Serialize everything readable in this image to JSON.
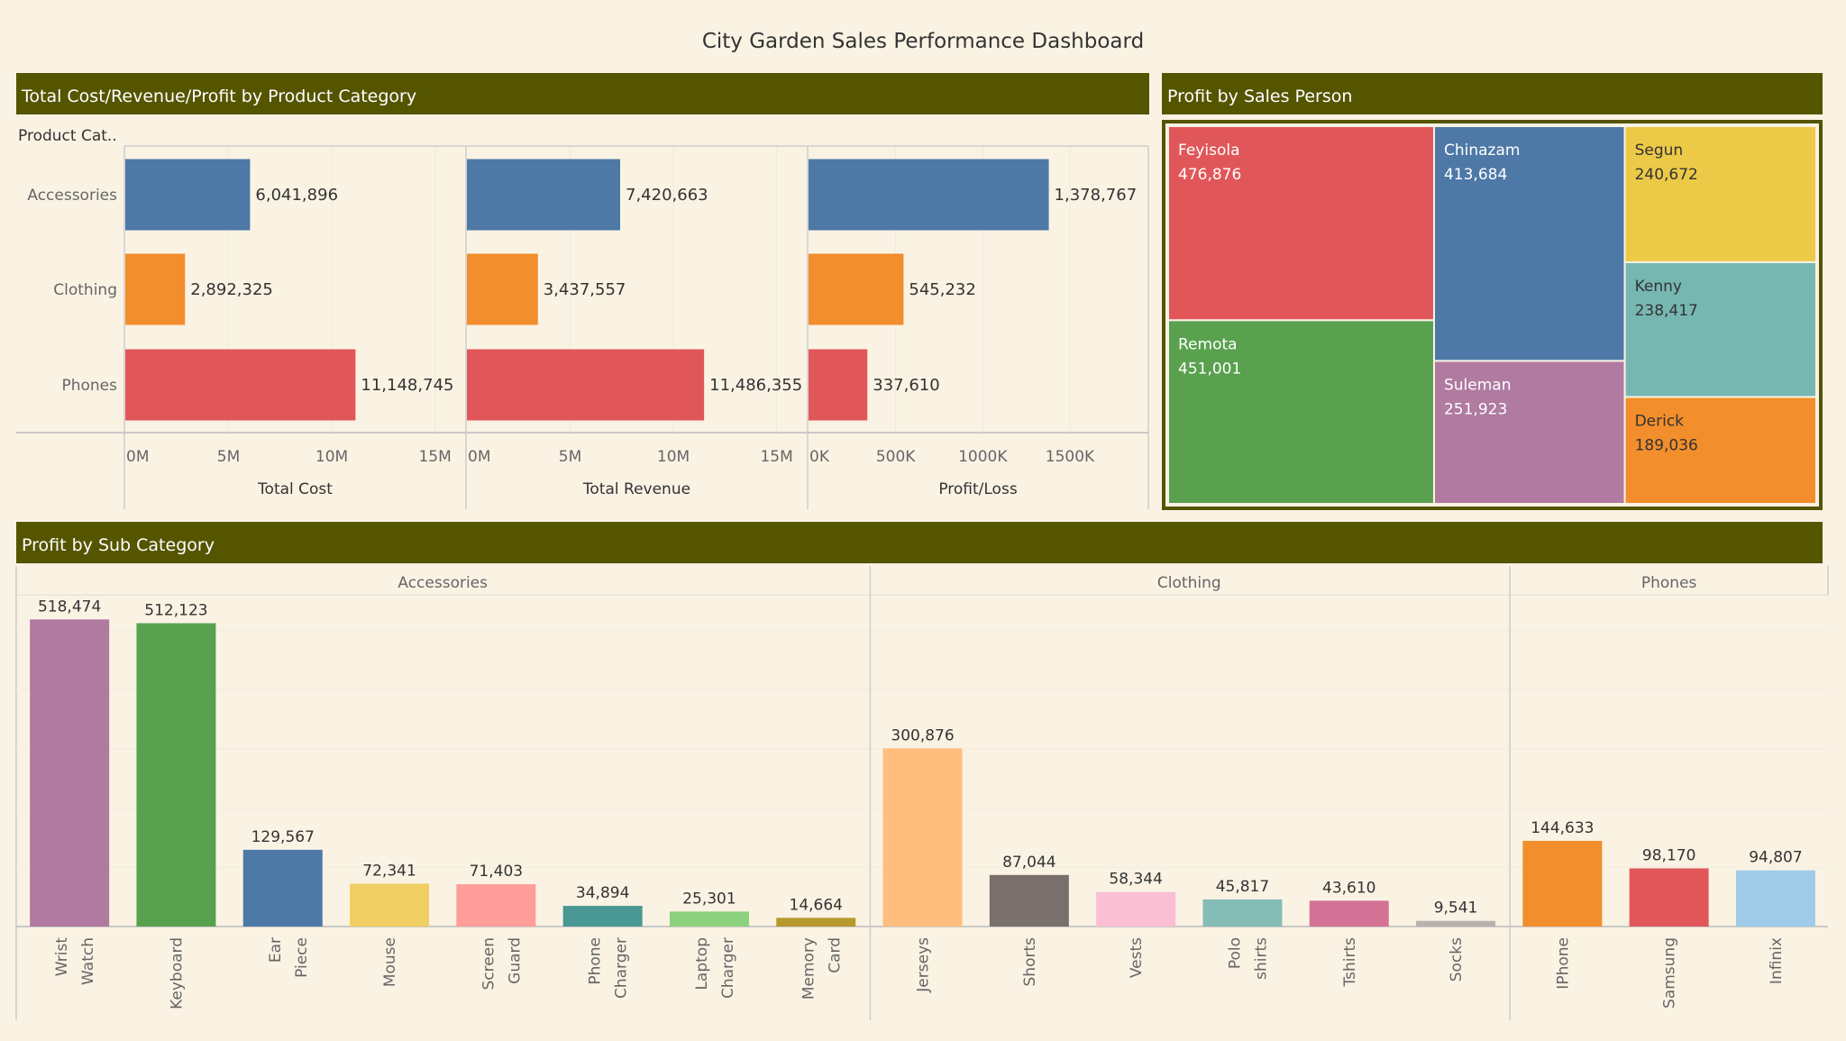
{
  "dashboard": {
    "title": "City Garden Sales Performance Dashboard",
    "colors": {
      "background": "#faf3e4",
      "header": "#555500",
      "header_text": "#ffffff",
      "Accessories": "#4e79a7",
      "Clothing": "#f28e2b",
      "Phones": "#e15759"
    }
  },
  "panels": {
    "category_panel_title": "Total Cost/Revenue/Profit by Product Category",
    "salesperson_panel_title": "Profit by Sales Person",
    "subcategory_panel_title": "Profit by Sub Category",
    "row_header": "Product Cat.."
  },
  "chart_data": [
    {
      "id": "category",
      "type": "bar",
      "orientation": "horizontal",
      "categories": [
        "Accessories",
        "Clothing",
        "Phones"
      ],
      "series": [
        {
          "name": "Total Cost",
          "values": [
            6041896,
            2892325,
            11148745
          ],
          "labels": [
            "6,041,896",
            "2,892,325",
            "11,148,745"
          ],
          "xlim": [
            0,
            16500000
          ],
          "ticks": [
            0,
            5000000,
            10000000,
            15000000
          ],
          "tick_labels": [
            "0M",
            "5M",
            "10M",
            "15M"
          ]
        },
        {
          "name": "Total Revenue",
          "values": [
            7420663,
            3437557,
            11486355
          ],
          "labels": [
            "7,420,663",
            "3,437,557",
            "11,486,355"
          ],
          "xlim": [
            0,
            16500000
          ],
          "ticks": [
            0,
            5000000,
            10000000,
            15000000
          ],
          "tick_labels": [
            "0M",
            "5M",
            "10M",
            "15M"
          ]
        },
        {
          "name": "Profit/Loss",
          "values": [
            1378767,
            545232,
            337610
          ],
          "labels": [
            "1,378,767",
            "545,232",
            "337,610"
          ],
          "xlim": [
            0,
            1950000
          ],
          "ticks": [
            0,
            500000,
            1000000,
            1500000
          ],
          "tick_labels": [
            "0K",
            "500K",
            "1000K",
            "1500K"
          ]
        }
      ],
      "colors_by_category": [
        "#4e79a7",
        "#f28e2b",
        "#e15759"
      ],
      "grid": true
    },
    {
      "id": "salesperson",
      "type": "treemap",
      "items": [
        {
          "name": "Feyisola",
          "value": 476876,
          "label": "476,876",
          "color": "#e15759"
        },
        {
          "name": "Remota",
          "value": 451001,
          "label": "451,001",
          "color": "#59a14f"
        },
        {
          "name": "Chinazam",
          "value": 413684,
          "label": "413,684",
          "color": "#4e79a7"
        },
        {
          "name": "Suleman",
          "value": 251923,
          "label": "251,923",
          "color": "#b07aa1"
        },
        {
          "name": "Segun",
          "value": 240672,
          "label": "240,672",
          "color": "#edc948"
        },
        {
          "name": "Kenny",
          "value": 238417,
          "label": "238,417",
          "color": "#76b7b2"
        },
        {
          "name": "Derick",
          "value": 189036,
          "label": "189,036",
          "color": "#f28e2b"
        }
      ]
    },
    {
      "id": "subcategory",
      "type": "bar",
      "ylim": [
        0,
        560000
      ],
      "groups": [
        {
          "name": "Accessories",
          "items": [
            {
              "name": "Wrist Watch",
              "value": 518474,
              "label": "518,474",
              "color": "#b07aa1"
            },
            {
              "name": "Keyboard",
              "value": 512123,
              "label": "512,123",
              "color": "#59a14f"
            },
            {
              "name": "Ear Piece",
              "value": 129567,
              "label": "129,567",
              "color": "#4e79a7"
            },
            {
              "name": "Mouse",
              "value": 72341,
              "label": "72,341",
              "color": "#f1ce63"
            },
            {
              "name": "Screen Guard",
              "value": 71403,
              "label": "71,403",
              "color": "#ff9d9a"
            },
            {
              "name": "Phone Charger",
              "value": 34894,
              "label": "34,894",
              "color": "#499894"
            },
            {
              "name": "Laptop Charger",
              "value": 25301,
              "label": "25,301",
              "color": "#8cd17d"
            },
            {
              "name": "Memory Card",
              "value": 14664,
              "label": "14,664",
              "color": "#b6992d"
            }
          ]
        },
        {
          "name": "Clothing",
          "items": [
            {
              "name": "Jerseys",
              "value": 300876,
              "label": "300,876",
              "color": "#ffbe7d"
            },
            {
              "name": "Shorts",
              "value": 87044,
              "label": "87,044",
              "color": "#79706e"
            },
            {
              "name": "Vests",
              "value": 58344,
              "label": "58,344",
              "color": "#fabfd2"
            },
            {
              "name": "Polo shirts",
              "value": 45817,
              "label": "45,817",
              "color": "#86bcb6"
            },
            {
              "name": "Tshirts",
              "value": 43610,
              "label": "43,610",
              "color": "#d37295"
            },
            {
              "name": "Socks",
              "value": 9541,
              "label": "9,541",
              "color": "#bab0ac"
            }
          ]
        },
        {
          "name": "Phones",
          "items": [
            {
              "name": "IPhone",
              "value": 144633,
              "label": "144,633",
              "color": "#f28e2b"
            },
            {
              "name": "Samsung",
              "value": 98170,
              "label": "98,170",
              "color": "#e15759"
            },
            {
              "name": "Infinix",
              "value": 94807,
              "label": "94,807",
              "color": "#a0cbe8"
            }
          ]
        }
      ]
    }
  ]
}
